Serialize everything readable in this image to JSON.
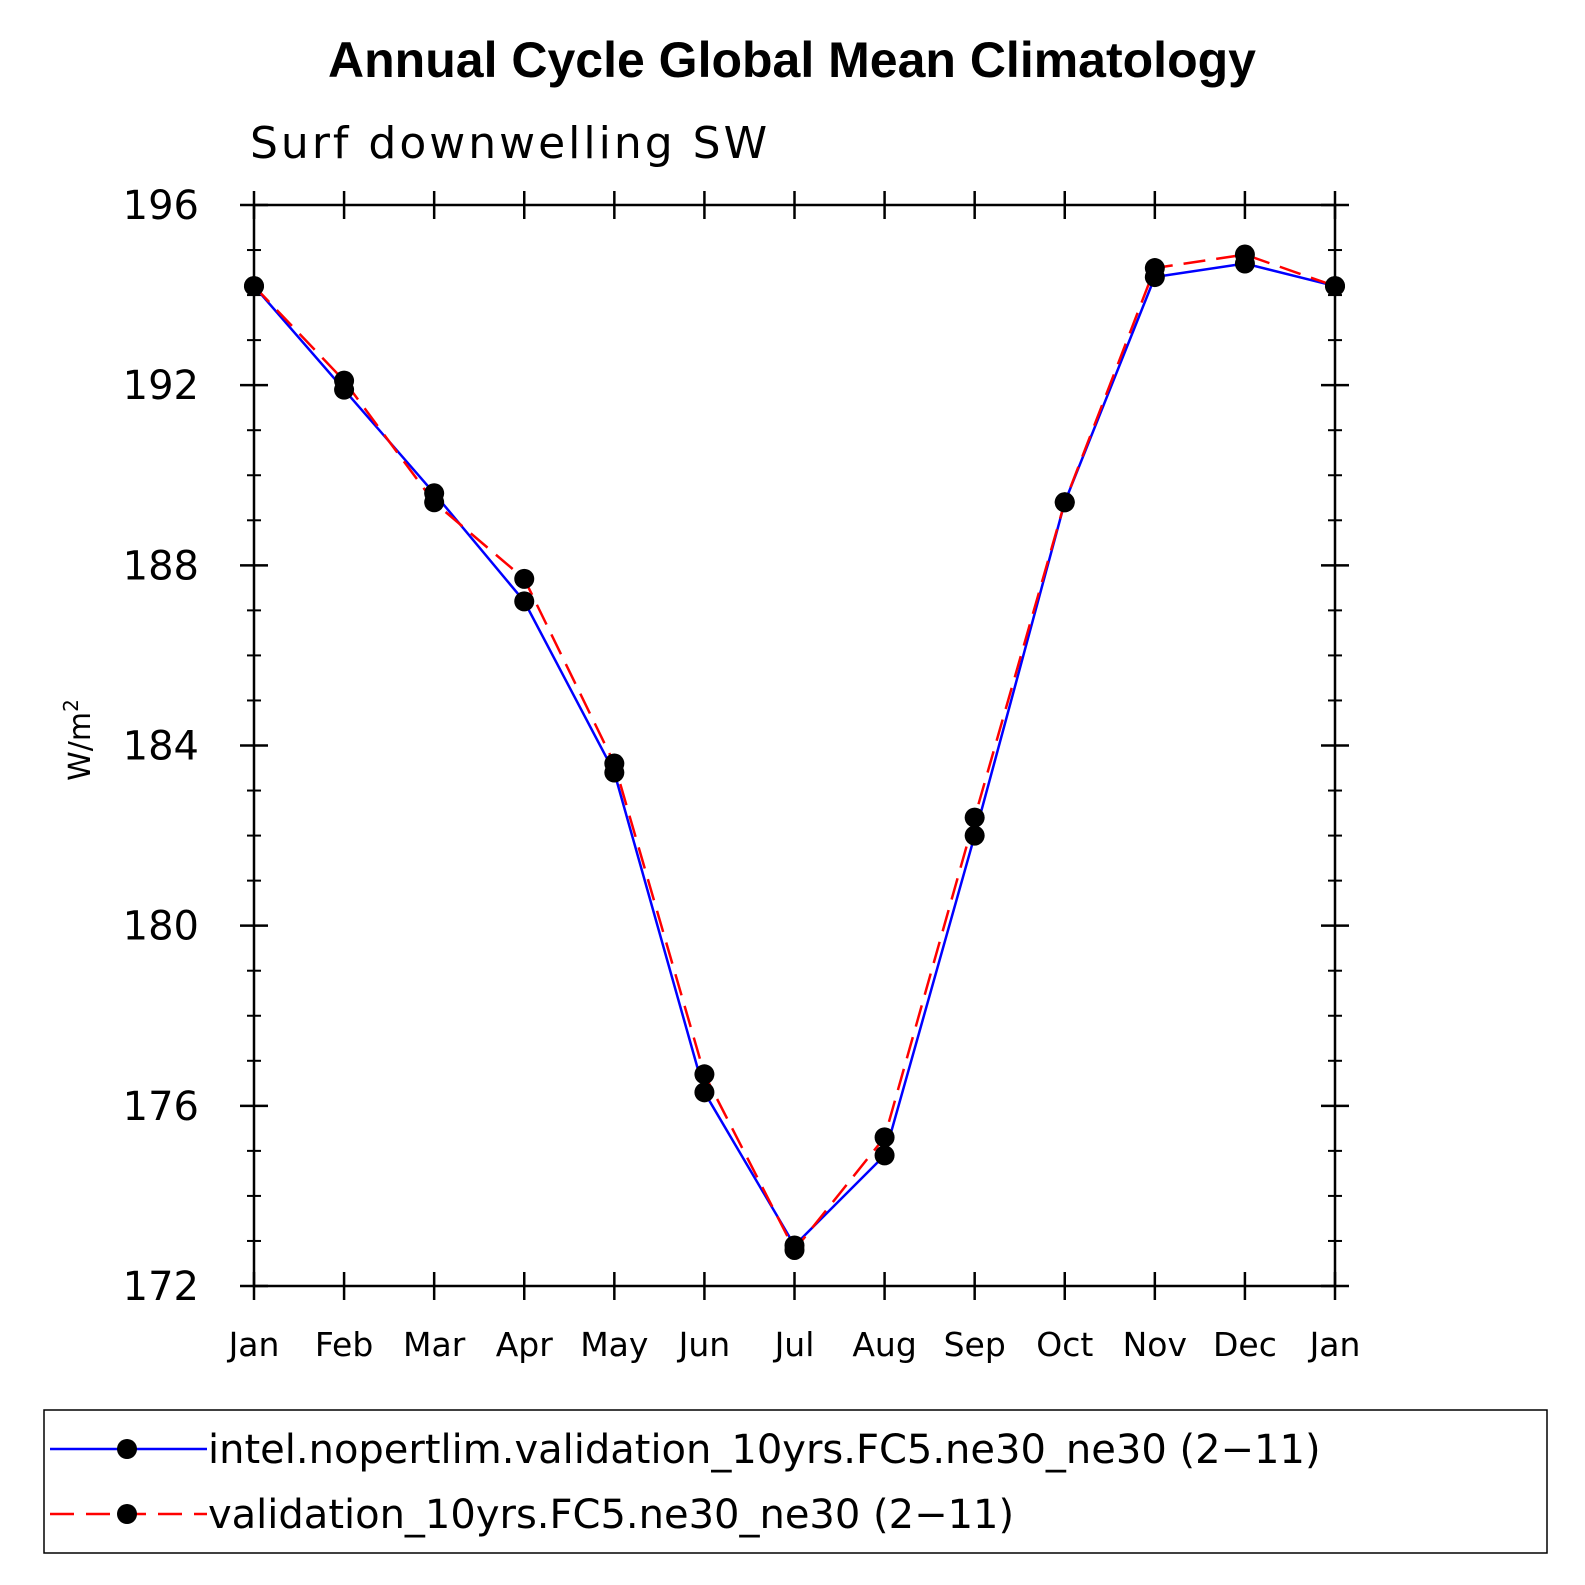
{
  "chart_data": {
    "type": "line",
    "title": "Annual Cycle Global Mean Climatology",
    "subtitle": "Surf downwelling SW",
    "ylabel": "W/m",
    "ylabel_superscript": "2",
    "xlabel": "",
    "categories": [
      "Jan",
      "Feb",
      "Mar",
      "Apr",
      "May",
      "Jun",
      "Jul",
      "Aug",
      "Sep",
      "Oct",
      "Nov",
      "Dec",
      "Jan"
    ],
    "ylim": [
      172,
      196
    ],
    "yticks": [
      "172",
      "176",
      "180",
      "184",
      "188",
      "192",
      "196"
    ],
    "series": [
      {
        "name": "intel.nopertlim.validation_10yrs.FC5.ne30_ne30 (2−11)",
        "color": "#0000ff",
        "style": "solid",
        "values": [
          194.2,
          191.9,
          189.6,
          187.2,
          183.4,
          176.3,
          172.9,
          174.9,
          182.0,
          189.4,
          194.4,
          194.7,
          194.2
        ]
      },
      {
        "name": "validation_10yrs.FC5.ne30_ne30 (2−11)",
        "color": "#ff0000",
        "style": "dashed",
        "values": [
          194.2,
          192.1,
          189.4,
          187.7,
          183.6,
          176.7,
          172.8,
          175.3,
          182.4,
          189.4,
          194.6,
          194.9,
          194.2
        ]
      }
    ]
  }
}
